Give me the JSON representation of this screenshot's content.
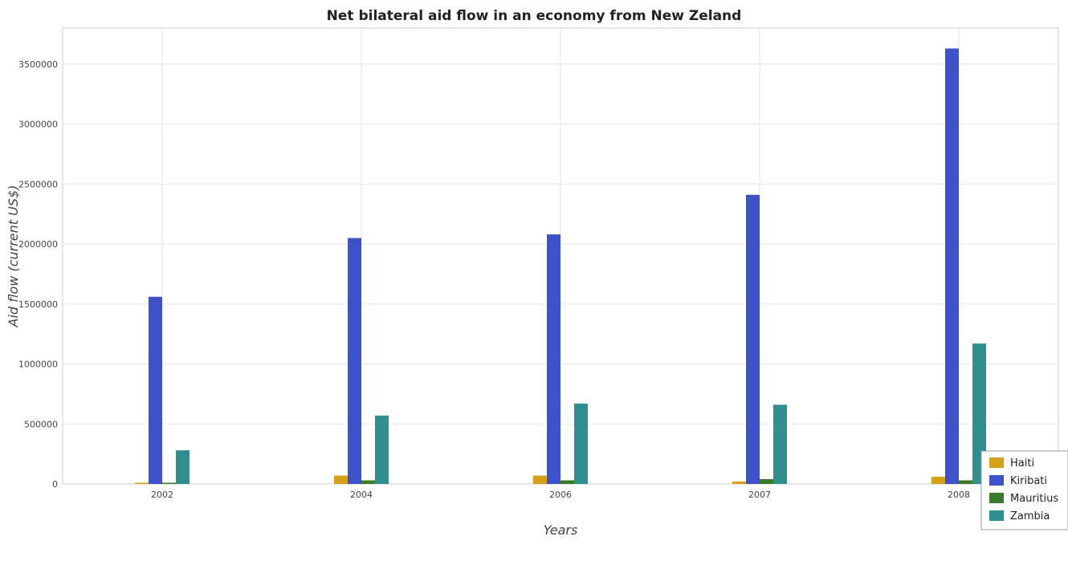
{
  "chart_data": {
    "type": "bar",
    "title": "Net bilateral aid flow in an economy from New Zeland",
    "xlabel": "Years",
    "ylabel": "Aid flow (current US$)",
    "categories": [
      "2002",
      "2004",
      "2006",
      "2007",
      "2008"
    ],
    "ylim": [
      0,
      3800000
    ],
    "yticks": [
      0,
      500000,
      1000000,
      1500000,
      2000000,
      2500000,
      3000000,
      3500000
    ],
    "ytick_labels": [
      "0",
      "500000",
      "1000000",
      "1500000",
      "2000000",
      "2500000",
      "3000000",
      "3500000"
    ],
    "grid": true,
    "legend_position": "bottom-right",
    "series": [
      {
        "name": "Haiti",
        "color": "#d4a017",
        "values": [
          10000,
          70000,
          70000,
          20000,
          60000
        ]
      },
      {
        "name": "Kiribati",
        "color": "#3d52c9",
        "values": [
          1560000,
          2050000,
          2080000,
          2410000,
          3630000
        ]
      },
      {
        "name": "Mauritius",
        "color": "#3a7a2a",
        "values": [
          10000,
          30000,
          30000,
          40000,
          30000
        ]
      },
      {
        "name": "Zambia",
        "color": "#2f8f8f",
        "values": [
          280000,
          570000,
          670000,
          660000,
          1170000
        ]
      }
    ]
  }
}
